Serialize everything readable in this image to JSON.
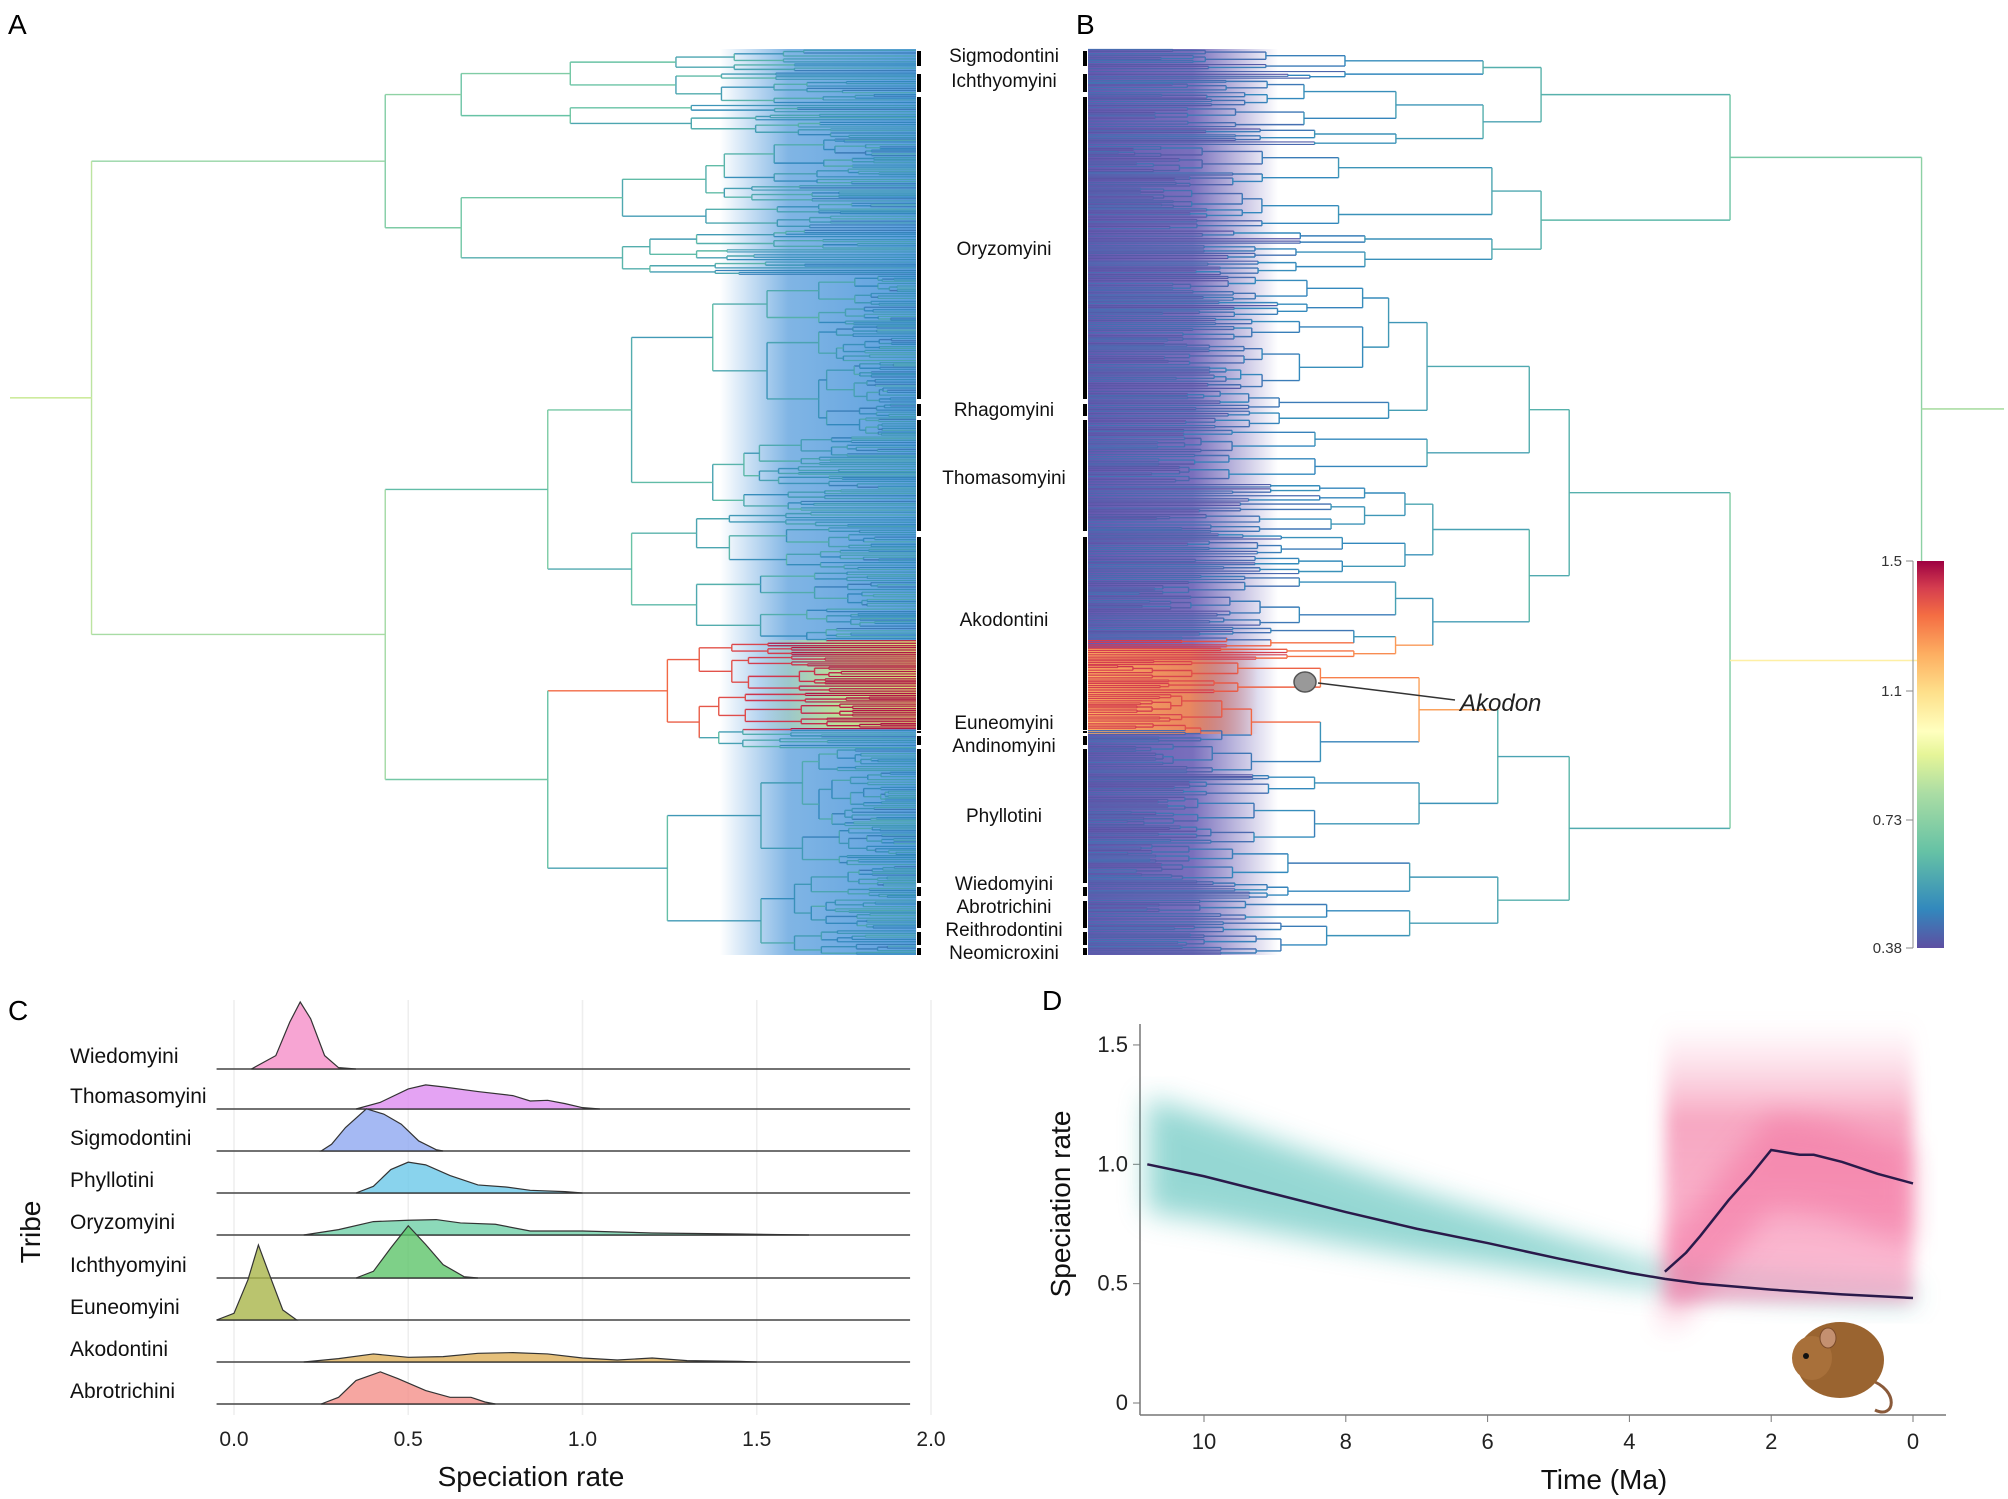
{
  "panels": {
    "a": "A",
    "b": "B",
    "c": "C",
    "d": "D"
  },
  "tribe_labels": [
    "Sigmodontini",
    "Ichthyomyini",
    "Oryzomyini",
    "Rhagomyini",
    "Thomasomyini",
    "Akodontini",
    "Euneomyini",
    "Andinomyini",
    "Phyllotini",
    "Wiedomyini",
    "Abrotrichini",
    "Reithrodontini",
    "Neomicroxini"
  ],
  "akodon_label": "Akodon",
  "colorbar": {
    "colormap": "spectral (purple-blue-green-yellow-orange-red)",
    "ticks": [
      "1.5",
      "1.1",
      "0.73",
      "0.38"
    ],
    "range": [
      0.38,
      1.5
    ]
  },
  "chart_data": [
    {
      "panel": "C",
      "type": "area",
      "subtype": "ridgeline density",
      "xlabel": "Speciation rate",
      "ylabel": "Tribe",
      "xlim": [
        0.0,
        2.0
      ],
      "xticks": [
        "0.0",
        "0.5",
        "1.0",
        "1.5",
        "2.0"
      ],
      "grid": true,
      "series": [
        {
          "name": "Wiedomyini",
          "color": "#f58fc8",
          "points": [
            [
              0.05,
              0
            ],
            [
              0.12,
              0.2
            ],
            [
              0.16,
              0.7
            ],
            [
              0.19,
              1.0
            ],
            [
              0.22,
              0.75
            ],
            [
              0.26,
              0.2
            ],
            [
              0.3,
              0.02
            ],
            [
              0.35,
              0
            ]
          ]
        },
        {
          "name": "Thomasomyini",
          "color": "#dd8cf0",
          "points": [
            [
              0.35,
              0
            ],
            [
              0.42,
              0.1
            ],
            [
              0.5,
              0.3
            ],
            [
              0.55,
              0.36
            ],
            [
              0.6,
              0.33
            ],
            [
              0.7,
              0.26
            ],
            [
              0.8,
              0.2
            ],
            [
              0.85,
              0.12
            ],
            [
              0.9,
              0.13
            ],
            [
              0.95,
              0.08
            ],
            [
              1.0,
              0.02
            ],
            [
              1.05,
              0
            ]
          ]
        },
        {
          "name": "Sigmodontini",
          "color": "#8fa8f0",
          "points": [
            [
              0.25,
              0
            ],
            [
              0.28,
              0.1
            ],
            [
              0.32,
              0.35
            ],
            [
              0.38,
              0.63
            ],
            [
              0.43,
              0.55
            ],
            [
              0.48,
              0.4
            ],
            [
              0.53,
              0.15
            ],
            [
              0.58,
              0.02
            ],
            [
              0.6,
              0
            ]
          ]
        },
        {
          "name": "Phyllotini",
          "color": "#6cc8e8",
          "points": [
            [
              0.35,
              0
            ],
            [
              0.4,
              0.1
            ],
            [
              0.45,
              0.35
            ],
            [
              0.5,
              0.46
            ],
            [
              0.55,
              0.42
            ],
            [
              0.62,
              0.26
            ],
            [
              0.7,
              0.12
            ],
            [
              0.78,
              0.09
            ],
            [
              0.85,
              0.04
            ],
            [
              0.95,
              0.02
            ],
            [
              1.0,
              0
            ]
          ]
        },
        {
          "name": "Oryzomyini",
          "color": "#6fcfa8",
          "points": [
            [
              0.2,
              0
            ],
            [
              0.3,
              0.08
            ],
            [
              0.4,
              0.2
            ],
            [
              0.5,
              0.22
            ],
            [
              0.58,
              0.23
            ],
            [
              0.65,
              0.18
            ],
            [
              0.75,
              0.16
            ],
            [
              0.85,
              0.06
            ],
            [
              1.0,
              0.06
            ],
            [
              1.2,
              0.03
            ],
            [
              1.45,
              0.015
            ],
            [
              1.65,
              0
            ]
          ]
        },
        {
          "name": "Ichthyomyini",
          "color": "#5ec46a",
          "points": [
            [
              0.35,
              0
            ],
            [
              0.4,
              0.1
            ],
            [
              0.45,
              0.45
            ],
            [
              0.5,
              0.78
            ],
            [
              0.55,
              0.5
            ],
            [
              0.6,
              0.2
            ],
            [
              0.66,
              0.02
            ],
            [
              0.7,
              0
            ]
          ]
        },
        {
          "name": "Euneomyini",
          "color": "#a9b54a",
          "points": [
            [
              -0.05,
              0
            ],
            [
              0.0,
              0.1
            ],
            [
              0.04,
              0.6
            ],
            [
              0.07,
              1.12
            ],
            [
              0.1,
              0.7
            ],
            [
              0.14,
              0.15
            ],
            [
              0.18,
              0
            ]
          ]
        },
        {
          "name": "Akodontini",
          "color": "#deb05a",
          "points": [
            [
              0.2,
              0
            ],
            [
              0.3,
              0.05
            ],
            [
              0.4,
              0.12
            ],
            [
              0.5,
              0.07
            ],
            [
              0.6,
              0.08
            ],
            [
              0.7,
              0.13
            ],
            [
              0.8,
              0.14
            ],
            [
              0.9,
              0.12
            ],
            [
              1.0,
              0.06
            ],
            [
              1.1,
              0.03
            ],
            [
              1.2,
              0.06
            ],
            [
              1.3,
              0.02
            ],
            [
              1.45,
              0.01
            ],
            [
              1.5,
              0
            ]
          ]
        },
        {
          "name": "Abrotrichini",
          "color": "#f4908a",
          "points": [
            [
              0.25,
              0
            ],
            [
              0.3,
              0.1
            ],
            [
              0.35,
              0.35
            ],
            [
              0.42,
              0.48
            ],
            [
              0.47,
              0.38
            ],
            [
              0.55,
              0.2
            ],
            [
              0.62,
              0.1
            ],
            [
              0.68,
              0.1
            ],
            [
              0.72,
              0.03
            ],
            [
              0.75,
              0
            ]
          ]
        }
      ]
    },
    {
      "panel": "D",
      "type": "line",
      "xlabel": "Time (Ma)",
      "ylabel": "Speciation rate",
      "xlim": [
        10.8,
        0
      ],
      "ylim": [
        0,
        1.6
      ],
      "xticks": [
        "10",
        "8",
        "6",
        "4",
        "2",
        "0"
      ],
      "yticks": [
        "0",
        "0.5",
        "1.0",
        "1.5"
      ],
      "series": [
        {
          "color": "#2a1a4a",
          "band_color": "#3fb8b0",
          "x": [
            10.8,
            10,
            9,
            8,
            7,
            6,
            5,
            4,
            3.5,
            3,
            2,
            1,
            0
          ],
          "y": [
            1.0,
            0.95,
            0.875,
            0.8,
            0.73,
            0.67,
            0.605,
            0.545,
            0.52,
            0.5,
            0.475,
            0.455,
            0.44
          ]
        },
        {
          "color": "#2a1a4a",
          "band_color": "#f0508a",
          "x": [
            3.5,
            3.2,
            3,
            2.6,
            2.3,
            2,
            1.8,
            1.6,
            1.4,
            1,
            0.5,
            0
          ],
          "y": [
            0.55,
            0.63,
            0.7,
            0.85,
            0.95,
            1.06,
            1.05,
            1.04,
            1.04,
            1.01,
            0.96,
            0.92
          ]
        }
      ]
    }
  ]
}
